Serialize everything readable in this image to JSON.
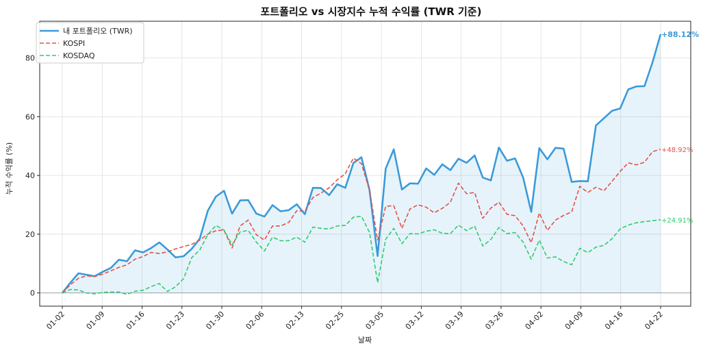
{
  "chart_data": {
    "type": "line",
    "title": "포트폴리오 vs 시장지수 누적 수익률 (TWR 기준)",
    "xlabel": "날짜",
    "ylabel": "누적 수익률 (%)",
    "ylim": [
      -4.5,
      92.5
    ],
    "yticks": [
      0,
      20,
      40,
      60,
      80
    ],
    "xticks": [
      "01-02",
      "01-09",
      "01-16",
      "01-23",
      "01-30",
      "02-06",
      "02-13",
      "02-25",
      "03-05",
      "03-12",
      "03-19",
      "03-26",
      "04-02",
      "04-09",
      "04-16",
      "04-22"
    ],
    "grid": true,
    "legend_position": "top-left",
    "series": [
      {
        "name": "내 포트폴리오 (TWR)",
        "style": "solid",
        "color": "#3a9ad9",
        "fill": true,
        "end_label": "+88.12%",
        "values": [
          0,
          3.5,
          6.7,
          6.2,
          5.7,
          7.2,
          8.5,
          11.3,
          10.8,
          14.5,
          13.8,
          15.3,
          17.2,
          14.8,
          12.1,
          12.5,
          15.0,
          18.5,
          28.0,
          32.8,
          34.8,
          27.0,
          31.5,
          31.6,
          27.0,
          26.0,
          29.9,
          27.8,
          28.2,
          30.2,
          26.8,
          35.8,
          35.7,
          33.3,
          37.0,
          35.8,
          44.2,
          46.2,
          35.0,
          12.6,
          42.3,
          48.9,
          35.2,
          37.3,
          37.2,
          42.4,
          40.2,
          43.8,
          41.8,
          45.7,
          44.3,
          46.8,
          39.3,
          38.3,
          49.5,
          45.0,
          45.8,
          39.3,
          27.6,
          49.3,
          45.5,
          49.4,
          49.1,
          37.8,
          38.1,
          38.0,
          57.0,
          59.5,
          62.0,
          62.8,
          69.3,
          70.3,
          70.4,
          78.5,
          88.12
        ]
      },
      {
        "name": "KOSPI",
        "style": "dashed",
        "color": "#e0524a",
        "fill": false,
        "end_label": "+48.92%",
        "values": [
          0,
          2.8,
          5.0,
          5.8,
          5.6,
          6.4,
          7.5,
          8.7,
          9.6,
          11.5,
          12.4,
          13.8,
          13.4,
          14.0,
          15.0,
          15.8,
          16.5,
          18.0,
          20.0,
          21.2,
          21.4,
          15.3,
          22.8,
          24.8,
          19.8,
          18.0,
          22.8,
          22.8,
          24.0,
          28.0,
          27.8,
          32.5,
          34.0,
          35.8,
          38.5,
          40.6,
          45.9,
          44.0,
          35.0,
          18.0,
          29.5,
          29.7,
          22.0,
          28.6,
          30.0,
          29.2,
          27.3,
          28.8,
          30.9,
          37.4,
          33.8,
          34.2,
          25.4,
          28.9,
          30.9,
          26.8,
          26.3,
          22.8,
          17.1,
          27.2,
          21.3,
          24.8,
          26.4,
          27.6,
          36.3,
          34.2,
          36.0,
          34.8,
          38.0,
          41.4,
          44.3,
          43.6,
          44.5,
          48.1,
          48.92
        ]
      },
      {
        "name": "KOSDAQ",
        "style": "dashed",
        "color": "#2ecc71",
        "fill": false,
        "end_label": "+24.91%",
        "values": [
          0,
          1.2,
          1.0,
          0.0,
          -0.3,
          0.2,
          0.3,
          0.3,
          -0.5,
          0.6,
          0.9,
          2.2,
          3.2,
          0.5,
          2.1,
          4.9,
          12.0,
          14.6,
          19.9,
          23.0,
          21.4,
          16.4,
          20.8,
          21.3,
          17.3,
          14.3,
          19.0,
          17.8,
          17.8,
          19.0,
          17.3,
          22.4,
          22.0,
          21.8,
          22.8,
          23.0,
          25.8,
          26.1,
          20.6,
          3.5,
          18.3,
          22.0,
          16.8,
          20.2,
          20.1,
          21.0,
          21.5,
          20.3,
          20.2,
          23.1,
          21.2,
          22.7,
          16.0,
          18.2,
          22.3,
          20.2,
          20.6,
          17.3,
          11.5,
          18.0,
          11.9,
          12.3,
          10.7,
          9.6,
          15.2,
          13.7,
          15.6,
          16.2,
          18.5,
          21.8,
          23.1,
          23.9,
          24.3,
          24.6,
          24.91
        ]
      }
    ]
  }
}
